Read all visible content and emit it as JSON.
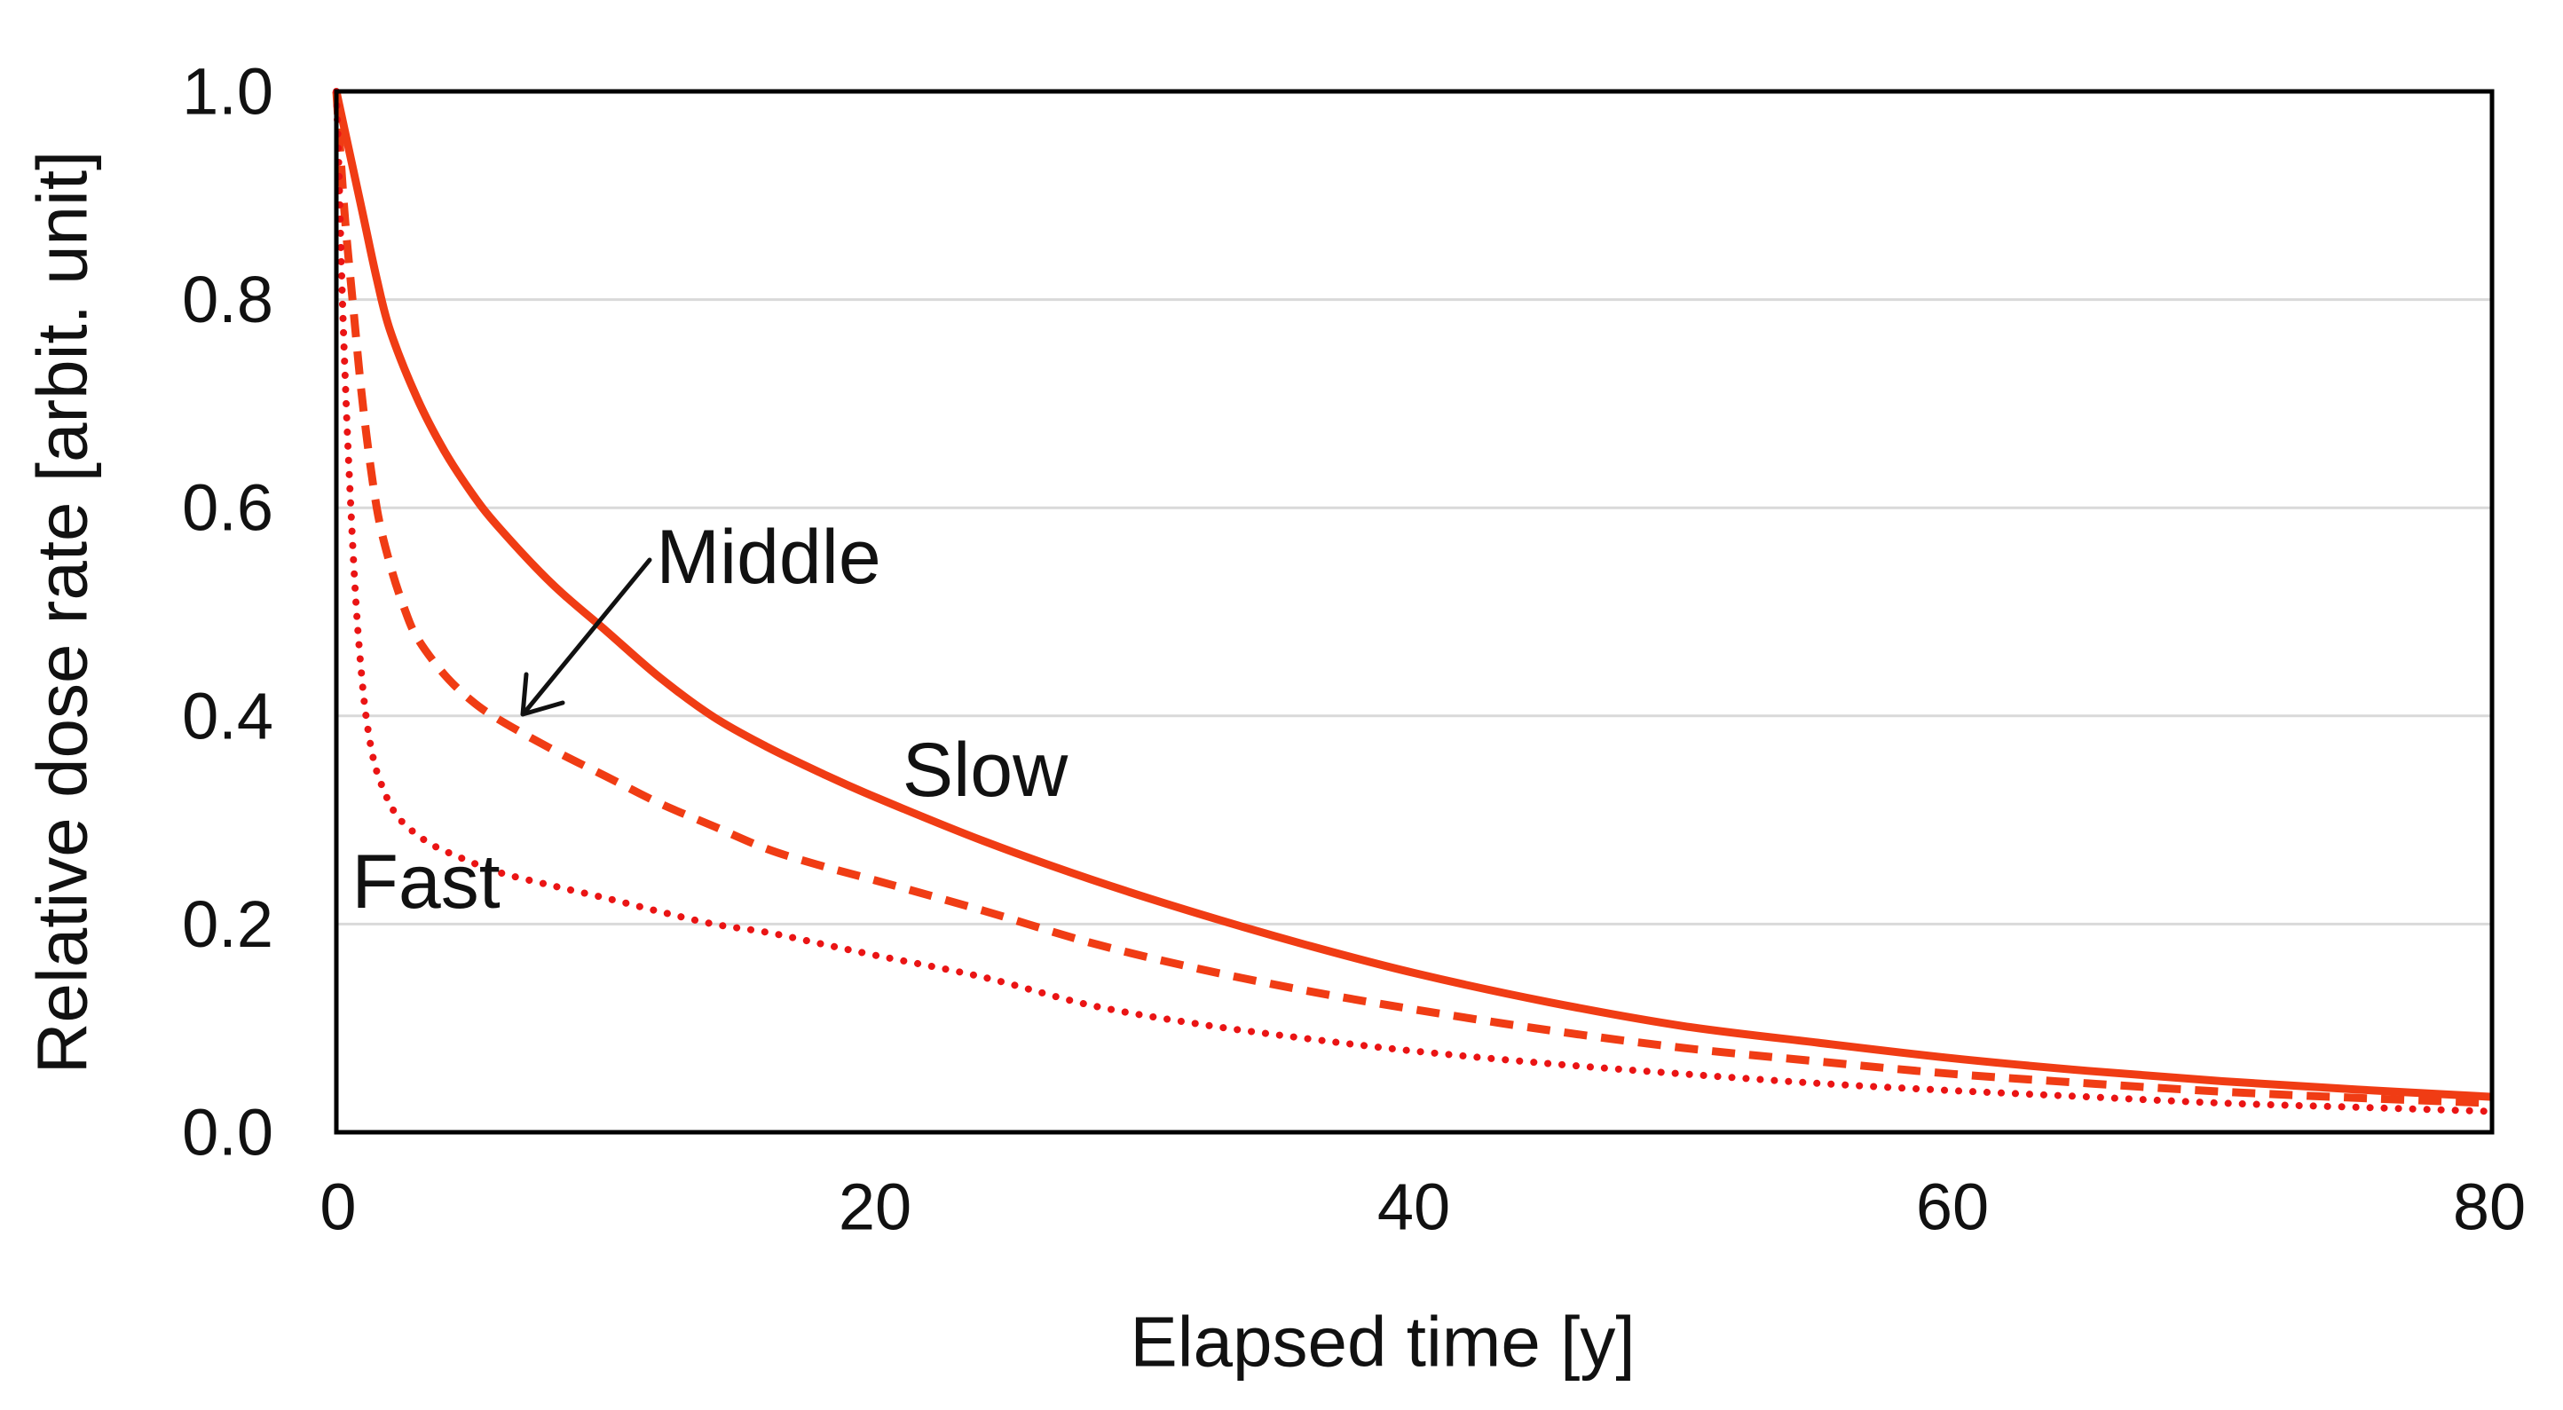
{
  "chart_data": {
    "type": "line",
    "title": "",
    "xlabel": "Elapsed time [y]",
    "ylabel": "Relative dose rate [arbit. unit]",
    "xlim": [
      0,
      80
    ],
    "ylim": [
      0.0,
      1.0
    ],
    "xticks": [
      "0",
      "20",
      "40",
      "60",
      "80"
    ],
    "yticks": [
      "1.0",
      "0.8",
      "0.6",
      "0.4",
      "0.2",
      "0.0"
    ],
    "grid": "horizontal gridlines at 0.2 intervals",
    "grid_color": "#d9d9d9",
    "axis_color": "#000000",
    "legend_position": "inline text annotations on curves",
    "series": [
      {
        "name": "Slow",
        "style": "solid",
        "color": "#f03c14",
        "x": [
          0,
          0.5,
          1,
          1.5,
          2,
          3,
          4,
          5,
          6,
          8,
          10,
          12,
          14,
          16,
          18,
          20,
          24,
          28,
          32,
          36,
          40,
          45,
          50,
          55,
          60,
          65,
          70,
          75,
          80
        ],
        "y": [
          1.0,
          0.94,
          0.88,
          0.82,
          0.77,
          0.705,
          0.655,
          0.615,
          0.582,
          0.527,
          0.482,
          0.437,
          0.399,
          0.37,
          0.345,
          0.322,
          0.28,
          0.243,
          0.21,
          0.18,
          0.153,
          0.125,
          0.102,
          0.086,
          0.071,
          0.059,
          0.049,
          0.041,
          0.034
        ]
      },
      {
        "name": "Middle",
        "style": "dashed",
        "color": "#f03c14",
        "x": [
          0,
          0.3,
          0.6,
          1,
          1.5,
          2,
          2.5,
          3,
          4,
          5,
          6,
          8,
          10,
          12,
          14,
          16,
          18,
          20,
          24,
          28,
          32,
          36,
          40,
          45,
          50,
          55,
          60,
          65,
          70,
          75,
          80
        ],
        "y": [
          1.0,
          0.885,
          0.8,
          0.695,
          0.6,
          0.545,
          0.505,
          0.475,
          0.44,
          0.415,
          0.397,
          0.368,
          0.342,
          0.316,
          0.294,
          0.272,
          0.256,
          0.242,
          0.213,
          0.182,
          0.157,
          0.136,
          0.118,
          0.098,
          0.081,
          0.068,
          0.056,
          0.047,
          0.039,
          0.033,
          0.028
        ]
      },
      {
        "name": "Fast",
        "style": "dotted",
        "color": "#ea1414",
        "x": [
          0,
          0.1,
          0.2,
          0.35,
          0.5,
          0.7,
          0.9,
          1.1,
          1.4,
          1.8,
          2.2,
          2.7,
          3.5,
          4.5,
          6,
          8,
          10,
          12,
          14,
          16,
          18,
          20,
          24,
          28,
          32,
          36,
          40,
          45,
          50,
          55,
          60,
          65,
          70,
          75,
          80
        ],
        "y": [
          1.0,
          0.92,
          0.82,
          0.71,
          0.62,
          0.52,
          0.45,
          0.4,
          0.356,
          0.326,
          0.306,
          0.292,
          0.277,
          0.265,
          0.25,
          0.237,
          0.225,
          0.212,
          0.2,
          0.192,
          0.181,
          0.17,
          0.149,
          0.122,
          0.104,
          0.09,
          0.078,
          0.066,
          0.056,
          0.047,
          0.04,
          0.034,
          0.028,
          0.024,
          0.02
        ]
      }
    ],
    "annotations": [
      {
        "text": "Middle",
        "points_to": "dashed curve",
        "arrow": true,
        "arrow_tip_data": {
          "x": 7,
          "y": 0.4
        }
      },
      {
        "text": "Slow",
        "points_to": "solid curve",
        "arrow": false
      },
      {
        "text": "Fast",
        "points_to": "dotted curve",
        "arrow": false
      }
    ]
  }
}
